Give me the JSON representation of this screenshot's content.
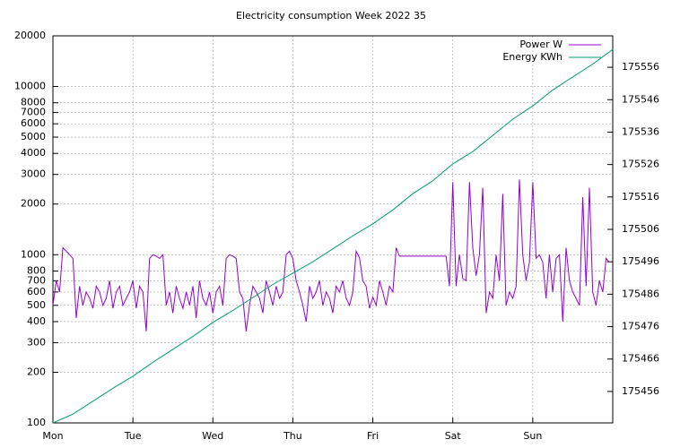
{
  "chart_data": {
    "type": "line",
    "title": "Electricity consumption Week 2022 35",
    "log_y": true,
    "grid": true,
    "legend": "top-right",
    "xlim": [
      0,
      168
    ],
    "xticks": [
      {
        "value": 0,
        "label": "Mon"
      },
      {
        "value": 24,
        "label": "Tue"
      },
      {
        "value": 48,
        "label": "Wed"
      },
      {
        "value": 72,
        "label": "Thu"
      },
      {
        "value": 96,
        "label": "Fri"
      },
      {
        "value": 120,
        "label": "Sat"
      },
      {
        "value": 144,
        "label": "Sun"
      }
    ],
    "ylim": [
      100,
      20000
    ],
    "yticks": [
      100,
      200,
      300,
      400,
      500,
      600,
      700,
      800,
      1000,
      2000,
      3000,
      4000,
      5000,
      6000,
      7000,
      8000,
      10000,
      20000
    ],
    "y2lim": [
      175446.3,
      175565.7
    ],
    "y2ticks": [
      175456,
      175466,
      175476,
      175486,
      175496,
      175506,
      175516,
      175526,
      175536,
      175546,
      175556
    ],
    "series": [
      {
        "name": "Power W",
        "color": "#9400d3",
        "x": [
          0,
          1,
          2,
          3,
          4,
          5,
          6,
          7,
          8,
          9,
          10,
          11,
          12,
          13,
          14,
          15,
          16,
          17,
          18,
          19,
          20,
          21,
          22,
          23,
          24,
          25,
          26,
          27,
          28,
          29,
          30,
          31,
          32,
          33,
          34,
          35,
          36,
          37,
          38,
          39,
          40,
          41,
          42,
          43,
          44,
          45,
          46,
          47,
          48,
          49,
          50,
          51,
          52,
          53,
          54,
          55,
          56,
          57,
          58,
          59,
          60,
          61,
          62,
          63,
          64,
          65,
          66,
          67,
          68,
          69,
          70,
          71,
          72,
          73,
          74,
          75,
          76,
          77,
          78,
          79,
          80,
          81,
          82,
          83,
          84,
          85,
          86,
          87,
          88,
          89,
          90,
          91,
          92,
          93,
          94,
          95,
          96,
          97,
          98,
          99,
          100,
          101,
          102,
          103,
          104,
          105,
          106,
          107,
          108,
          109,
          110,
          111,
          112,
          113,
          114,
          115,
          116,
          117,
          118,
          119,
          120,
          121,
          122,
          123,
          124,
          125,
          126,
          127,
          128,
          129,
          130,
          131,
          132,
          133,
          134,
          135,
          136,
          137,
          138,
          139,
          140,
          141,
          142,
          143,
          144,
          145,
          146,
          147,
          148,
          149,
          150,
          151,
          152,
          153,
          154,
          155,
          156,
          157,
          158,
          159,
          160,
          161,
          162,
          163,
          164,
          165,
          166,
          167
        ],
        "values": [
          500,
          700,
          600,
          1100,
          1050,
          1000,
          950,
          420,
          650,
          500,
          600,
          550,
          480,
          650,
          600,
          500,
          550,
          700,
          480,
          600,
          650,
          500,
          550,
          600,
          700,
          480,
          650,
          600,
          350,
          950,
          1000,
          980,
          950,
          1000,
          500,
          600,
          450,
          650,
          550,
          480,
          600,
          500,
          650,
          420,
          700,
          550,
          500,
          600,
          450,
          600,
          650,
          500,
          950,
          1000,
          980,
          950,
          600,
          550,
          350,
          500,
          650,
          600,
          550,
          450,
          700,
          600,
          500,
          650,
          550,
          600,
          1000,
          1050,
          950,
          700,
          600,
          500,
          400,
          650,
          550,
          600,
          700,
          500,
          600,
          550,
          450,
          650,
          600,
          700,
          550,
          500,
          600,
          1050,
          960,
          700,
          650,
          480,
          560,
          500,
          700,
          600,
          500,
          650,
          600,
          1100,
          980,
          980,
          980,
          980,
          980,
          980,
          980,
          980,
          980,
          980,
          980,
          980,
          980,
          980,
          980,
          650,
          2700,
          650,
          1000,
          720,
          700,
          2700,
          1100,
          750,
          1000,
          2500,
          450,
          600,
          550,
          1000,
          700,
          2300,
          500,
          600,
          550,
          650,
          2800,
          1000,
          700,
          900,
          2700,
          950,
          1000,
          900,
          550,
          1000,
          600,
          950,
          1000,
          400,
          1100,
          700,
          600,
          550,
          500,
          2200,
          650,
          2500,
          600,
          500,
          700,
          600,
          950,
          900
        ]
      },
      {
        "name": "Energy KWh",
        "color": "#009e73",
        "axis": "y2",
        "x": [
          0,
          6,
          12,
          18,
          24,
          30,
          36,
          42,
          48,
          54,
          60,
          66,
          72,
          78,
          84,
          90,
          96,
          102,
          108,
          114,
          120,
          126,
          132,
          138,
          144,
          150,
          156,
          162,
          168
        ],
        "values": [
          175446.3,
          175449,
          175453,
          175457,
          175460.7,
          175465,
          175469,
          175473,
          175477.3,
          175481,
          175485,
          175489,
          175492.5,
          175496,
          175500,
          175504,
          175507.7,
          175512,
          175517,
          175521,
          175526.2,
          175530,
          175535,
          175540,
          175544.1,
          175549,
          175553,
          175557,
          175561.5
        ]
      }
    ]
  }
}
